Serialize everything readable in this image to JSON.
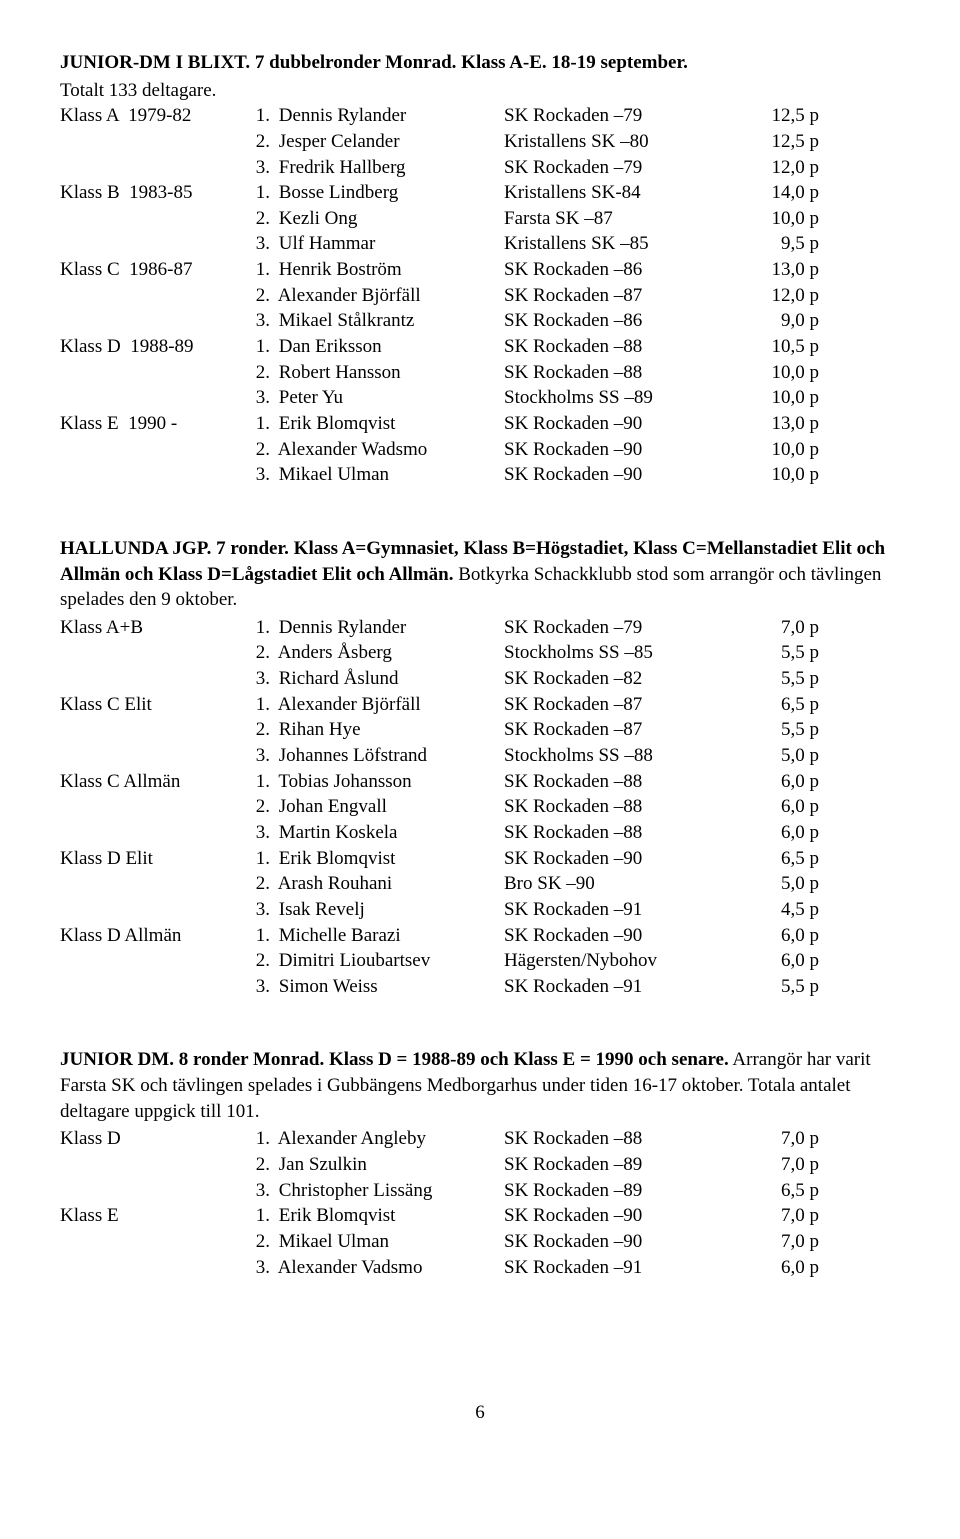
{
  "section1": {
    "title_bold": "JUNIOR-DM I BLIXT. 7 dubbelronder Monrad. Klass A-E. 18-19 september.",
    "title_rest": "Totalt 133 deltagare.",
    "groups": [
      {
        "label": "Klass A  1979-82",
        "rows": [
          {
            "n": "1.",
            "name": "Dennis Rylander",
            "club": "SK Rockaden –79",
            "score": "12,5 p"
          },
          {
            "n": "2.",
            "name": "Jesper Celander",
            "club": "Kristallens SK –80",
            "score": "12,5 p"
          },
          {
            "n": "3.",
            "name": "Fredrik Hallberg",
            "club": "SK Rockaden –79",
            "score": "12,0 p"
          }
        ]
      },
      {
        "label": "Klass B  1983-85",
        "rows": [
          {
            "n": "1.",
            "name": "Bosse Lindberg",
            "club": "Kristallens SK-84",
            "score": "14,0 p"
          },
          {
            "n": "2.",
            "name": "Kezli Ong",
            "club": "Farsta SK –87",
            "score": "10,0 p"
          },
          {
            "n": "3.",
            "name": "Ulf Hammar",
            "club": "Kristallens SK –85",
            "score": "9,5 p"
          }
        ]
      },
      {
        "label": "Klass C  1986-87",
        "rows": [
          {
            "n": "1.",
            "name": "Henrik Boström",
            "club": "SK Rockaden –86",
            "score": "13,0 p"
          },
          {
            "n": "2.",
            "name": "Alexander Björfäll",
            "club": "SK Rockaden –87",
            "score": "12,0 p"
          },
          {
            "n": "3.",
            "name": "Mikael Stålkrantz",
            "club": "SK Rockaden –86",
            "score": "9,0 p"
          }
        ]
      },
      {
        "label": "Klass D  1988-89",
        "rows": [
          {
            "n": "1.",
            "name": "Dan Eriksson",
            "club": "SK Rockaden –88",
            "score": "10,5 p"
          },
          {
            "n": "2.",
            "name": "Robert Hansson",
            "club": "SK Rockaden –88",
            "score": "10,0 p"
          },
          {
            "n": "3.",
            "name": "Peter Yu",
            "club": "Stockholms SS –89",
            "score": "10,0 p"
          }
        ]
      },
      {
        "label": "Klass E  1990 -",
        "rows": [
          {
            "n": "1.",
            "name": "Erik Blomqvist",
            "club": "SK Rockaden –90",
            "score": "13,0 p"
          },
          {
            "n": "2.",
            "name": "Alexander Wadsmo",
            "club": "SK Rockaden –90",
            "score": "10,0 p"
          },
          {
            "n": "3.",
            "name": "Mikael Ulman",
            "club": "SK Rockaden –90",
            "score": "10,0 p"
          }
        ]
      }
    ]
  },
  "section2": {
    "title_bold": "HALLUNDA JGP. 7 ronder. Klass A=Gymnasiet, Klass B=Högstadiet, Klass C=Mellan­stadiet Elit och Allmän och Klass D=Lågstadiet Elit och Allmän.",
    "title_rest": " Botkyrka Schackklubb stod som arrangör och tävlingen spelades den 9 oktober.",
    "groups": [
      {
        "label": "Klass A+B",
        "rows": [
          {
            "n": "1.",
            "name": "Dennis Rylander",
            "club": "SK Rockaden –79",
            "score": "7,0 p"
          },
          {
            "n": "2.",
            "name": "Anders Åsberg",
            "club": "Stockholms SS –85",
            "score": "5,5 p"
          },
          {
            "n": "3.",
            "name": "Richard Åslund",
            "club": "SK Rockaden –82",
            "score": "5,5 p"
          }
        ]
      },
      {
        "label": "Klass C Elit",
        "rows": [
          {
            "n": "1.",
            "name": "Alexander Björfäll",
            "club": "SK Rockaden –87",
            "score": "6,5 p"
          },
          {
            "n": "2.",
            "name": "Rihan Hye",
            "club": "SK Rockaden –87",
            "score": "5,5 p"
          },
          {
            "n": "3.",
            "name": "Johannes Löfstrand",
            "club": "Stockholms SS –88",
            "score": "5,0 p"
          }
        ]
      },
      {
        "label": "Klass C Allmän",
        "rows": [
          {
            "n": "1.",
            "name": "Tobias Johansson",
            "club": "SK Rockaden –88",
            "score": "6,0 p"
          },
          {
            "n": "2.",
            "name": "Johan Engvall",
            "club": "SK Rockaden –88",
            "score": "6,0 p"
          },
          {
            "n": "3.",
            "name": "Martin Koskela",
            "club": "SK Rockaden –88",
            "score": "6,0 p"
          }
        ]
      },
      {
        "label": "Klass D Elit",
        "rows": [
          {
            "n": "1.",
            "name": "Erik Blomqvist",
            "club": "SK Rockaden –90",
            "score": "6,5 p"
          },
          {
            "n": "2.",
            "name": "Arash Rouhani",
            "club": "Bro SK –90",
            "score": "5,0 p"
          },
          {
            "n": "3.",
            "name": "Isak Revelj",
            "club": "SK Rockaden –91",
            "score": "4,5 p"
          }
        ]
      },
      {
        "label": "Klass D Allmän",
        "rows": [
          {
            "n": "1.",
            "name": "Michelle Barazi",
            "club": "SK Rockaden –90",
            "score": "6,0 p"
          },
          {
            "n": "2.",
            "name": "Dimitri Lioubartsev",
            "club": "Hägersten/Nybohov",
            "score": "6,0 p"
          },
          {
            "n": "3.",
            "name": "Simon Weiss",
            "club": "SK Rockaden –91",
            "score": "5,5 p"
          }
        ]
      }
    ]
  },
  "section3": {
    "title_bold": "JUNIOR DM.  8 ronder Monrad. Klass D = 1988-89  och Klass E = 1990  och senare.",
    "title_rest": " Arrangör har varit Farsta SK och tävlingen spelades i Gubbängens Medborgarhus under tiden 16-17 oktober. Totala antalet deltagare uppgick till 101.",
    "groups": [
      {
        "label": "Klass D",
        "rows": [
          {
            "n": "1.",
            "name": "Alexander Angleby",
            "club": "SK Rockaden –88",
            "score": "7,0 p"
          },
          {
            "n": "2.",
            "name": "Jan Szulkin",
            "club": "SK Rockaden –89",
            "score": "7,0 p"
          },
          {
            "n": "3.",
            "name": "Christopher Lissäng",
            "club": "SK Rockaden –89",
            "score": "6,5 p"
          }
        ]
      },
      {
        "label": "Klass E",
        "rows": [
          {
            "n": "1.",
            "name": "Erik Blomqvist",
            "club": "SK Rockaden –90",
            "score": "7,0 p"
          },
          {
            "n": "2.",
            "name": "Mikael Ulman",
            "club": "SK Rockaden –90",
            "score": "7,0 p"
          },
          {
            "n": "3.",
            "name": "Alexander Vadsmo",
            "club": "SK Rockaden –91",
            "score": "6,0 p"
          }
        ]
      }
    ]
  },
  "page_number": "6"
}
